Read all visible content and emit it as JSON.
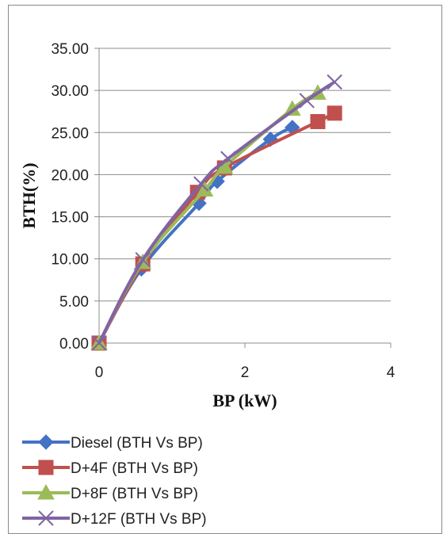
{
  "chart_data": {
    "type": "line",
    "xlabel": "BP (kW)",
    "ylabel": "BTH(%)",
    "xlim": [
      0,
      4
    ],
    "ylim": [
      0,
      35
    ],
    "x_ticks": [
      "0",
      "2",
      "4"
    ],
    "y_ticks": [
      "0.00",
      "5.00",
      "10.00",
      "15.00",
      "20.00",
      "25.00",
      "30.00",
      "35.00"
    ],
    "grid": "horizontal",
    "legend_position": "bottom",
    "series": [
      {
        "name": "Diesel (BTH Vs BP)",
        "color": "#4472C4",
        "marker": "diamond",
        "x": [
          0,
          0.58,
          1.37,
          1.62,
          2.35,
          2.65
        ],
        "y": [
          0,
          8.8,
          16.6,
          19.2,
          24.2,
          25.6
        ]
      },
      {
        "name": "D+4F (BTH Vs BP)",
        "color": "#C0504D",
        "marker": "square",
        "x": [
          0,
          0.6,
          1.35,
          1.72,
          3.0,
          3.23
        ],
        "y": [
          0,
          9.4,
          17.9,
          20.8,
          26.3,
          27.3
        ]
      },
      {
        "name": "D+8F (BTH Vs BP)",
        "color": "#9BBB59",
        "marker": "triangle",
        "x": [
          0,
          0.6,
          1.45,
          1.72,
          2.65,
          3.0
        ],
        "y": [
          0,
          9.6,
          18.2,
          20.9,
          27.8,
          29.7
        ]
      },
      {
        "name": "D+12F (BTH Vs BP)",
        "color": "#8064A2",
        "marker": "x",
        "x": [
          0,
          0.6,
          1.4,
          1.77,
          2.85,
          3.23
        ],
        "y": [
          0,
          9.9,
          18.9,
          21.9,
          28.8,
          31.0
        ]
      }
    ]
  }
}
